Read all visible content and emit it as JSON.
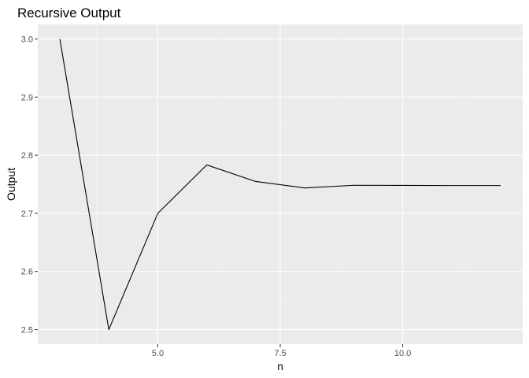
{
  "chart_data": {
    "type": "line",
    "title": "Recursive Output",
    "xlabel": "n",
    "ylabel": "Output",
    "xlim": [
      2.55,
      12.45
    ],
    "ylim": [
      2.475,
      3.025
    ],
    "x_ticks": [
      5,
      7.5,
      10
    ],
    "x_tick_labels": [
      "5.0",
      "7.5",
      "10.0"
    ],
    "y_ticks": [
      2.5,
      2.6,
      2.7,
      2.8,
      2.9,
      3.0
    ],
    "y_tick_labels": [
      "2.5",
      "2.6",
      "2.7",
      "2.8",
      "2.9",
      "3.0"
    ],
    "grid": true,
    "legend": "none",
    "series": [
      {
        "color": "#000000",
        "x": [
          3,
          4,
          5,
          6,
          7,
          8,
          9,
          10,
          11,
          12
        ],
        "y": [
          3.0,
          2.5,
          2.7,
          2.7833,
          2.7548,
          2.7437,
          2.7483,
          2.7481,
          2.7478,
          2.7478
        ]
      }
    ],
    "colors": {
      "panel_background": "#ebebeb",
      "grid_major": "#ffffff",
      "grid_minor": "#f5f5f5",
      "tick_label": "#4d4d4d",
      "tick_mark": "#333333"
    }
  }
}
